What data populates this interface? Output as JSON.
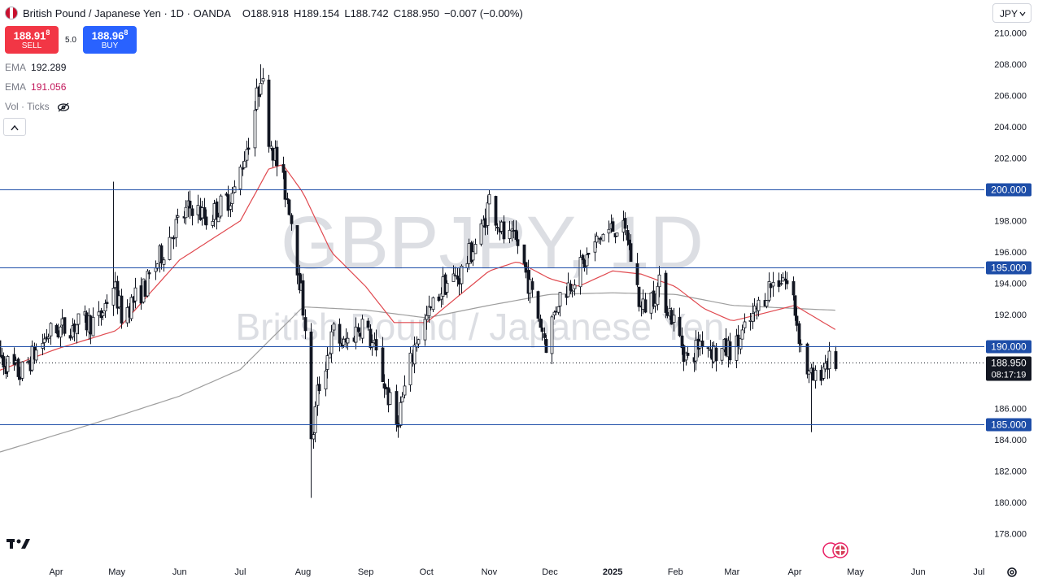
{
  "legend": {
    "title": "British Pound / Japanese Yen · 1D · OANDA",
    "o_label": "O",
    "o": "188.918",
    "h_label": "H",
    "h": "189.154",
    "l_label": "L",
    "l": "188.742",
    "c_label": "C",
    "c": "188.950",
    "change": "−0.007 (−0.00%)"
  },
  "trade": {
    "sell_price": "188.91",
    "sell_sup": "8",
    "sell_label": "SELL",
    "spread": "5.0",
    "buy_price": "188.96",
    "buy_sup": "8",
    "buy_label": "BUY"
  },
  "indicators": [
    {
      "name": "EMA",
      "value": "192.289"
    },
    {
      "name": "EMA",
      "value": "191.056"
    },
    {
      "name": "Vol · Ticks",
      "value": ""
    }
  ],
  "currency": "JPY",
  "watermark": {
    "big": "GBPJPY, 1D",
    "small": "British Pound / Japanese Yen"
  },
  "colors": {
    "candle": "#131722",
    "ema_fast": "#e0494f",
    "ema_slow": "#9e9e9e",
    "hline": "#1e4ea8",
    "label_bg": "#1e4ea8"
  },
  "chart_data": {
    "type": "candlestick",
    "price_axis": [
      "210.000",
      "208.000",
      "206.000",
      "204.000",
      "202.000",
      "200.000",
      "198.000",
      "196.000",
      "194.000",
      "192.000",
      "190.000",
      "188.000",
      "186.000",
      "184.000",
      "182.000",
      "180.000",
      "178.000"
    ],
    "ylim": [
      177.0,
      210.5
    ],
    "time_axis": [
      "Apr",
      "May",
      "Jun",
      "Jul",
      "Aug",
      "Sep",
      "Oct",
      "Nov",
      "Dec",
      "2025",
      "Feb",
      "Mar",
      "Apr",
      "May",
      "Jun",
      "Jul"
    ],
    "horizontal_lines": [
      200.0,
      195.0,
      190.0,
      185.0
    ],
    "horizontal_line_labels": [
      "200.000",
      "195.000",
      "190.000",
      "185.000"
    ],
    "last_price": "188.950",
    "countdown": "08:17:19",
    "anchors": [
      [
        "2024-03-01",
        189.6
      ],
      [
        "2024-03-14",
        188.2
      ],
      [
        "2024-03-28",
        190.8
      ],
      [
        "2024-04-08",
        191.3
      ],
      [
        "2024-04-22",
        191.6
      ],
      [
        "2024-04-29",
        194.0
      ],
      [
        "2024-05-03",
        192.0
      ],
      [
        "2024-05-15",
        193.8
      ],
      [
        "2024-05-29",
        197.5
      ],
      [
        "2024-06-07",
        199.0
      ],
      [
        "2024-06-14",
        198.1
      ],
      [
        "2024-06-28",
        199.8
      ],
      [
        "2024-07-05",
        203.2
      ],
      [
        "2024-07-10",
        206.5
      ],
      [
        "2024-07-11",
        207.5
      ],
      [
        "2024-07-15",
        203.5
      ],
      [
        "2024-07-25",
        199.0
      ],
      [
        "2024-08-02",
        191.5
      ],
      [
        "2024-08-05",
        183.5
      ],
      [
        "2024-08-08",
        187.0
      ],
      [
        "2024-08-16",
        190.9
      ],
      [
        "2024-08-21",
        190.0
      ],
      [
        "2024-08-30",
        191.5
      ],
      [
        "2024-09-05",
        189.8
      ],
      [
        "2024-09-16",
        185.0
      ],
      [
        "2024-09-26",
        190.5
      ],
      [
        "2024-10-02",
        192.0
      ],
      [
        "2024-10-09",
        193.9
      ],
      [
        "2024-10-17",
        194.5
      ],
      [
        "2024-10-28",
        197.3
      ],
      [
        "2024-11-01",
        199.4
      ],
      [
        "2024-11-08",
        197.0
      ],
      [
        "2024-11-15",
        196.5
      ],
      [
        "2024-11-22",
        193.2
      ],
      [
        "2024-11-29",
        190.2
      ],
      [
        "2024-12-05",
        193.0
      ],
      [
        "2024-12-16",
        195.0
      ],
      [
        "2024-12-26",
        197.0
      ],
      [
        "2025-01-03",
        197.7
      ],
      [
        "2025-01-08",
        197.0
      ],
      [
        "2025-01-15",
        192.3
      ],
      [
        "2025-01-24",
        193.8
      ],
      [
        "2025-01-31",
        191.6
      ],
      [
        "2025-02-07",
        189.0
      ],
      [
        "2025-02-14",
        190.5
      ],
      [
        "2025-02-21",
        189.5
      ],
      [
        "2025-03-03",
        190.0
      ],
      [
        "2025-03-11",
        191.8
      ],
      [
        "2025-03-19",
        193.8
      ],
      [
        "2025-03-26",
        194.5
      ],
      [
        "2025-03-31",
        193.0
      ],
      [
        "2025-04-04",
        190.0
      ],
      [
        "2025-04-08",
        188.0
      ],
      [
        "2025-04-11",
        187.8
      ],
      [
        "2025-04-16",
        189.0
      ],
      [
        "2025-04-21",
        188.95
      ]
    ],
    "ema_fast_anchors": [
      [
        "2024-03-01",
        188.3
      ],
      [
        "2024-04-01",
        189.8
      ],
      [
        "2024-05-01",
        191.0
      ],
      [
        "2024-06-01",
        195.5
      ],
      [
        "2024-07-01",
        198.0
      ],
      [
        "2024-07-15",
        201.3
      ],
      [
        "2024-07-22",
        201.6
      ],
      [
        "2024-08-01",
        199.8
      ],
      [
        "2024-08-15",
        196.0
      ],
      [
        "2024-09-01",
        193.8
      ],
      [
        "2024-09-15",
        191.5
      ],
      [
        "2024-10-01",
        191.5
      ],
      [
        "2024-10-15",
        193.0
      ],
      [
        "2024-11-01",
        194.8
      ],
      [
        "2024-11-15",
        195.4
      ],
      [
        "2024-12-01",
        194.3
      ],
      [
        "2024-12-15",
        193.8
      ],
      [
        "2025-01-01",
        194.8
      ],
      [
        "2025-01-15",
        194.6
      ],
      [
        "2025-02-01",
        193.8
      ],
      [
        "2025-02-15",
        192.4
      ],
      [
        "2025-03-01",
        191.6
      ],
      [
        "2025-03-20",
        192.2
      ],
      [
        "2025-04-01",
        192.6
      ],
      [
        "2025-04-21",
        191.056
      ]
    ],
    "ema_slow_anchors": [
      [
        "2024-03-01",
        183.1
      ],
      [
        "2024-05-01",
        185.5
      ],
      [
        "2024-06-01",
        186.8
      ],
      [
        "2024-07-01",
        188.5
      ],
      [
        "2024-08-01",
        192.5
      ],
      [
        "2024-09-01",
        192.3
      ],
      [
        "2024-10-01",
        191.8
      ],
      [
        "2024-11-01",
        192.6
      ],
      [
        "2024-12-01",
        193.3
      ],
      [
        "2025-01-01",
        193.4
      ],
      [
        "2025-02-01",
        193.3
      ],
      [
        "2025-03-01",
        192.6
      ],
      [
        "2025-04-01",
        192.4
      ],
      [
        "2025-04-21",
        192.289
      ]
    ],
    "series_names": [
      "EMA",
      "EMA"
    ]
  }
}
